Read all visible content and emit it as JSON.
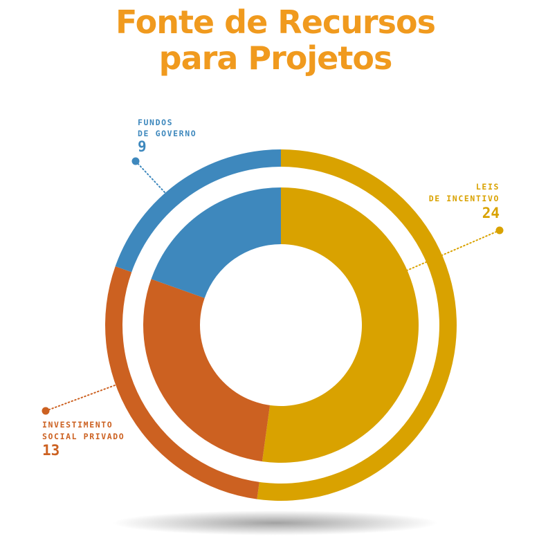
{
  "title_lines": [
    "Fonte de Recursos",
    "para Projetos"
  ],
  "colors": {
    "title": "#F09A1E",
    "leis_incentivo": "#D9A200",
    "investimento_social": "#CC6121",
    "fundos_governo": "#3E88BD"
  },
  "chart_data": {
    "type": "pie",
    "title": "Fonte de Recursos para Projetos",
    "style": "concentric donut rings",
    "series": [
      {
        "name": "Leis de Incentivo",
        "label_lines": [
          "LEIS",
          "DE INCENTIVO"
        ],
        "value": 24,
        "value_label": "24",
        "color": "#D9A200"
      },
      {
        "name": "Investimento Social Privado",
        "label_lines": [
          "INVESTIMENTO",
          "SOCIAL PRIVADO"
        ],
        "value": 13,
        "value_label": "13",
        "color": "#CC6121"
      },
      {
        "name": "Fundos de Governo",
        "label_lines": [
          "FUNDOS",
          "DE GOVERNO"
        ],
        "value": 9,
        "value_label": "9",
        "color": "#3E88BD"
      }
    ]
  }
}
